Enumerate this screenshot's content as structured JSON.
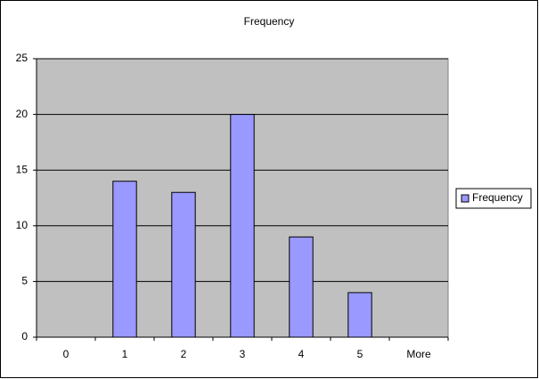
{
  "chart_data": {
    "type": "bar",
    "title": "Frequency",
    "categories": [
      "0",
      "1",
      "2",
      "3",
      "4",
      "5",
      "More"
    ],
    "series": [
      {
        "name": "Frequency",
        "color": "#9999ff",
        "values": [
          0,
          14,
          13,
          20,
          9,
          4,
          0
        ]
      }
    ],
    "ylim": [
      0,
      25
    ],
    "yticks": [
      0,
      5,
      10,
      15,
      20,
      25
    ],
    "grid": true,
    "legend": "right"
  }
}
